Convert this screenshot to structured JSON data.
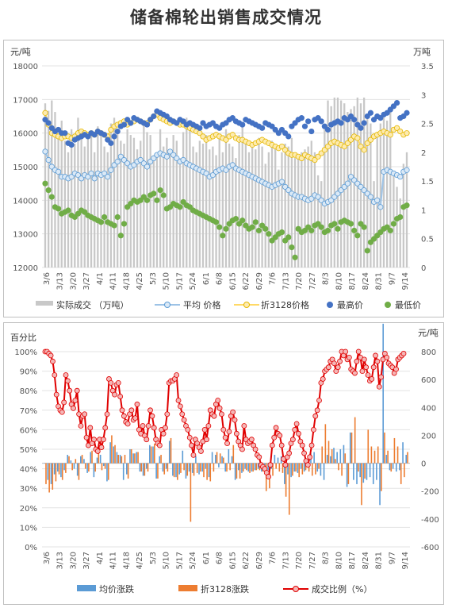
{
  "title": "储备棉轮出销售成交情况",
  "chart_data": [
    {
      "type": "combo",
      "y_left_unit": "元/吨",
      "y_right_unit": "万吨",
      "y_left_ticks": [
        "12000",
        "13000",
        "14000",
        "15000",
        "16000",
        "17000",
        "18000"
      ],
      "y_right_ticks": [
        "0",
        "0.5",
        "1",
        "1.5",
        "2",
        "2.5",
        "3",
        "3.5"
      ],
      "ylim_left": [
        12000,
        18000
      ],
      "ylim_right": [
        0,
        3.5
      ],
      "x_ticks": [
        "3/6",
        "3/13",
        "3/20",
        "3/27",
        "4/1",
        "4/11",
        "4/18",
        "4/25",
        "5/3",
        "5/10",
        "5/17",
        "5/24",
        "6/1",
        "6/8",
        "6/15",
        "6/22",
        "6/29",
        "7/6",
        "7/13",
        "7/20",
        "7/27",
        "8/3",
        "8/10",
        "8/17",
        "8/24",
        "8/31",
        "9/7",
        "9/14"
      ],
      "legend": [
        "实际成交 （万吨）",
        "平均 价格",
        "折3128价格",
        "最高价",
        "最低价"
      ],
      "colors": {
        "volume": "#c8c8c8",
        "avg": "#9dc3e6",
        "avg_edge": "#5b9bd5",
        "p3128": "#ffd966",
        "p3128_edge": "#e6b800",
        "high": "#4472c4",
        "low": "#70ad47"
      },
      "series": {
        "volume": [
          2.85,
          2.72,
          2.9,
          2.7,
          2.3,
          2.55,
          2.2,
          2.0,
          2.4,
          2.15,
          2.6,
          2.35,
          2.1,
          2.25,
          2.3,
          2.0,
          2.45,
          2.3,
          2.1,
          2.0,
          2.5,
          2.6,
          2.35,
          2.2,
          2.15,
          2.4,
          2.3,
          2.25,
          2.05,
          2.2,
          2.5,
          2.35,
          2.3,
          1.95,
          2.0,
          2.4,
          2.1,
          2.25,
          2.05,
          2.3,
          2.2,
          1.9,
          2.35,
          2.6,
          2.4,
          2.1,
          2.0,
          2.2,
          2.15,
          2.3,
          2.05,
          2.1,
          1.95,
          2.25,
          2.0,
          2.4,
          2.15,
          2.1,
          1.9,
          2.3,
          2.5,
          2.2,
          2.0,
          2.1,
          2.05,
          2.25,
          2.1,
          1.8,
          2.0,
          2.2,
          2.1,
          1.7,
          2.0,
          2.15,
          2.1,
          2.25,
          1.9,
          1.95,
          2.0,
          2.05,
          2.1,
          2.2,
          2.0,
          1.6,
          1.5,
          2.5,
          2.9,
          2.8,
          2.95,
          2.95,
          2.9,
          2.85,
          2.7,
          2.75,
          2.8,
          2.95,
          2.85,
          2.95,
          2.6,
          2.5,
          1.5,
          2.3,
          2.5,
          2.6,
          2.55,
          2.7,
          1.6,
          1.4,
          1.2,
          1.8,
          2.0
        ],
        "avg": [
          15450,
          15200,
          15000,
          14900,
          14850,
          14700,
          14700,
          14650,
          14700,
          14800,
          14750,
          14650,
          14750,
          14700,
          14800,
          14650,
          14800,
          14750,
          14800,
          14700,
          14900,
          15050,
          15150,
          15300,
          15200,
          15100,
          15000,
          15050,
          15150,
          15200,
          15100,
          15000,
          15150,
          15250,
          15350,
          15400,
          15350,
          15300,
          15450,
          15350,
          15250,
          15150,
          15200,
          15100,
          15050,
          15000,
          14950,
          14900,
          14850,
          14800,
          14700,
          14750,
          14850,
          14900,
          14950,
          14900,
          15000,
          15050,
          14950,
          14900,
          14850,
          14800,
          14750,
          14700,
          14650,
          14600,
          14550,
          14500,
          14450,
          14400,
          14450,
          14500,
          14550,
          14400,
          14300,
          14200,
          14150,
          14100,
          14100,
          14050,
          14000,
          14050,
          14150,
          14100,
          14000,
          13900,
          13950,
          14000,
          14100,
          14200,
          14300,
          14400,
          14500,
          14700,
          14600,
          14500,
          14400,
          14300,
          14200,
          14100,
          13950,
          14000,
          13800,
          14850,
          14900,
          14850,
          14800,
          14750,
          14700,
          14850,
          14900
        ],
        "p3128": [
          16600,
          16250,
          16000,
          15950,
          15900,
          15850,
          15900,
          15900,
          15850,
          15900,
          16000,
          16050,
          16000,
          15950,
          16000,
          15950,
          16050,
          16000,
          15950,
          15900,
          16100,
          16200,
          16250,
          16300,
          16350,
          16250,
          16300,
          16350,
          16400,
          16350,
          16300,
          16300,
          16400,
          16500,
          16550,
          16450,
          16400,
          16350,
          16300,
          16350,
          16300,
          16250,
          16250,
          16200,
          16150,
          16100,
          16050,
          16000,
          15900,
          15800,
          15850,
          15900,
          15950,
          15900,
          15850,
          15800,
          15900,
          15950,
          15850,
          15800,
          15800,
          15750,
          15700,
          15650,
          15700,
          15750,
          15800,
          15750,
          15700,
          15650,
          15600,
          15550,
          15600,
          15500,
          15400,
          15350,
          15350,
          15300,
          15250,
          15350,
          15300,
          15250,
          15200,
          15300,
          15400,
          15500,
          15600,
          15700,
          15750,
          15700,
          15650,
          15600,
          15700,
          15800,
          15900,
          15850,
          15600,
          15500,
          15700,
          15800,
          15900,
          15950,
          16000,
          16050,
          16000,
          15950,
          16100,
          16150,
          16050,
          15950,
          16000
        ],
        "high": [
          16400,
          16300,
          16150,
          16050,
          16100,
          16000,
          16000,
          15700,
          15650,
          15800,
          15850,
          15900,
          15950,
          15900,
          16000,
          15950,
          16050,
          16000,
          15950,
          15800,
          15700,
          15900,
          16050,
          16200,
          16250,
          16400,
          16300,
          16450,
          16400,
          16350,
          16300,
          16250,
          16400,
          16500,
          16650,
          16600,
          16550,
          16500,
          16400,
          16350,
          16300,
          16400,
          16350,
          16250,
          16300,
          16250,
          16200,
          16150,
          16300,
          16200,
          16250,
          16300,
          16200,
          16150,
          16250,
          16300,
          16400,
          16450,
          16350,
          16300,
          16250,
          16400,
          16350,
          16300,
          16250,
          16200,
          16150,
          16300,
          16250,
          16200,
          16100,
          16000,
          16100,
          16000,
          15900,
          16200,
          16300,
          16400,
          16450,
          16200,
          16350,
          16050,
          16400,
          16450,
          16350,
          16200,
          16100,
          16250,
          16300,
          16350,
          16300,
          16450,
          16400,
          16500,
          16400,
          16250,
          16150,
          16300,
          16500,
          16600,
          16400,
          16500,
          16450,
          16550,
          16600,
          16700,
          16800,
          16900,
          16450,
          16500,
          16600
        ],
        "low": [
          14500,
          14300,
          14100,
          13800,
          13750,
          13600,
          13650,
          13700,
          13550,
          13500,
          13600,
          13700,
          13650,
          13550,
          13500,
          13450,
          13400,
          13350,
          13500,
          13350,
          13300,
          13250,
          13500,
          12950,
          13300,
          13800,
          13900,
          14000,
          13950,
          14000,
          14100,
          14000,
          14150,
          14200,
          14000,
          14300,
          14150,
          13750,
          13800,
          13900,
          13850,
          13800,
          13950,
          13850,
          13800,
          13700,
          13650,
          13600,
          13550,
          13500,
          13450,
          13400,
          13350,
          13200,
          12950,
          13150,
          13300,
          13400,
          13450,
          13300,
          13400,
          13250,
          13150,
          13200,
          13350,
          13100,
          13250,
          13150,
          13000,
          12800,
          12900,
          13000,
          13050,
          12800,
          12900,
          12600,
          12300,
          13150,
          13050,
          13100,
          13200,
          13100,
          13250,
          13300,
          13200,
          13050,
          13100,
          13250,
          13300,
          13150,
          13350,
          13400,
          13350,
          13300,
          13100,
          12950,
          13300,
          13200,
          12500,
          12750,
          12850,
          12950,
          13050,
          13150,
          13200,
          13100,
          13300,
          13450,
          13500,
          13800,
          13850
        ]
      }
    },
    {
      "type": "combo",
      "y_left_unit": "百分比",
      "y_right_unit": "元/吨",
      "y_left_ticks": [
        "0%",
        "10%",
        "20%",
        "30%",
        "40%",
        "50%",
        "60%",
        "70%",
        "80%",
        "90%",
        "100%"
      ],
      "y_right_ticks": [
        "-600",
        "-400",
        "-200",
        "0",
        "200",
        "400",
        "600",
        "800"
      ],
      "ylim_left": [
        0,
        100
      ],
      "ylim_right": [
        -600,
        800
      ],
      "x_ticks": [
        "3/6",
        "3/13",
        "3/20",
        "3/27",
        "4/1",
        "4/11",
        "4/18",
        "4/25",
        "5/3",
        "5/10",
        "5/17",
        "5/24",
        "6/1",
        "6/8",
        "6/15",
        "6/22",
        "6/29",
        "7/6",
        "7/13",
        "7/20",
        "7/27",
        "8/3",
        "8/10",
        "8/17",
        "8/24",
        "8/31",
        "9/7",
        "9/14"
      ],
      "legend": [
        "均价涨跌",
        "折3128涨跌",
        "成交比例（%）"
      ],
      "colors": {
        "avg_change": "#5b9bd5",
        "p3128_change": "#ed7d31",
        "ratio": "#e00000",
        "ratio_fill": "#f4b6b6"
      },
      "series": {
        "avg_change": [
          0,
          -120,
          -150,
          -80,
          -60,
          -100,
          -50,
          60,
          20,
          -40,
          -90,
          50,
          30,
          -70,
          80,
          -100,
          40,
          60,
          -20,
          -130,
          150,
          120,
          80,
          60,
          -120,
          -80,
          100,
          70,
          80,
          -60,
          -90,
          -40,
          130,
          120,
          -110,
          50,
          -60,
          -40,
          160,
          -90,
          -100,
          -80,
          90,
          -110,
          -60,
          -70,
          50,
          -80,
          -60,
          -40,
          -100,
          80,
          60,
          -30,
          50,
          -60,
          100,
          50,
          -120,
          -50,
          -70,
          -40,
          -60,
          -60,
          -50,
          -40,
          -60,
          -50,
          -50,
          -40,
          60,
          40,
          50,
          -150,
          -80,
          -100,
          -60,
          -70,
          -40,
          -60,
          -30,
          70,
          80,
          -60,
          -90,
          -120,
          60,
          50,
          110,
          80,
          100,
          130,
          -170,
          220,
          -120,
          -150,
          -100,
          -140,
          -120,
          -100,
          -150,
          -120,
          -300,
          1000,
          60,
          -50,
          -40,
          -60,
          -50,
          150,
          60
        ],
        "p3128_change": [
          -150,
          -210,
          -190,
          -130,
          -80,
          -120,
          -70,
          50,
          -50,
          30,
          -120,
          60,
          -40,
          -60,
          90,
          -60,
          110,
          -50,
          -40,
          -120,
          200,
          130,
          60,
          50,
          60,
          -110,
          100,
          70,
          80,
          -60,
          -90,
          -60,
          120,
          140,
          -110,
          60,
          -80,
          -60,
          180,
          -100,
          -120,
          -70,
          -50,
          -90,
          -420,
          -90,
          -70,
          -60,
          -100,
          -120,
          -130,
          -60,
          80,
          70,
          40,
          -60,
          -50,
          130,
          -110,
          -110,
          -60,
          -50,
          -70,
          -60,
          -50,
          -50,
          -60,
          -200,
          -180,
          -90,
          -40,
          -60,
          -70,
          -240,
          -370,
          -90,
          -60,
          -100,
          -80,
          -50,
          -60,
          -90,
          -80,
          -40,
          120,
          280,
          160,
          100,
          30,
          -50,
          -90,
          70,
          -150,
          220,
          330,
          -60,
          -300,
          -110,
          240,
          120,
          90,
          120,
          -200,
          220,
          90,
          -60,
          180,
          120,
          -150,
          -100,
          80
        ],
        "ratio": [
          100,
          100,
          99,
          98,
          95,
          88,
          78,
          72,
          70,
          69,
          74,
          88,
          85,
          80,
          73,
          71,
          75,
          80,
          68,
          62,
          67,
          68,
          56,
          52,
          61,
          53,
          55,
          50,
          49,
          55,
          51,
          55,
          61,
          68,
          86,
          84,
          80,
          78,
          83,
          84,
          77,
          70,
          67,
          64,
          63,
          68,
          70,
          65,
          66,
          73,
          60,
          58,
          62,
          57,
          55,
          62,
          70,
          67,
          61,
          55,
          53,
          52,
          60,
          58,
          61,
          68,
          84,
          85,
          85,
          86,
          88,
          75,
          72,
          68,
          65,
          62,
          60,
          56,
          52,
          47,
          55,
          53,
          51,
          49,
          54,
          60,
          55,
          62,
          70,
          68,
          67,
          73,
          75,
          71,
          68,
          60,
          56,
          53,
          59,
          67,
          69,
          65,
          58,
          54,
          52,
          50,
          62,
          55,
          53,
          54,
          55,
          52,
          50,
          47,
          46,
          42,
          41,
          40,
          38,
          36,
          42,
          52,
          56,
          61,
          58,
          57,
          52,
          45,
          42,
          46,
          48,
          53,
          55,
          60,
          63,
          58,
          54,
          52,
          48,
          44,
          42,
          46,
          52,
          60,
          67,
          70,
          75,
          84,
          86,
          90,
          91,
          92,
          95,
          96,
          94,
          90,
          92,
          95,
          100,
          98,
          100,
          96,
          97,
          91,
          90,
          89,
          95,
          100,
          97,
          90,
          96,
          92,
          88,
          85,
          86,
          92,
          98,
          95,
          82,
          87,
          96,
          99,
          97,
          94,
          93,
          92,
          89,
          91,
          96,
          97,
          98,
          99
        ],
        "ratio_note": ""
      }
    }
  ]
}
